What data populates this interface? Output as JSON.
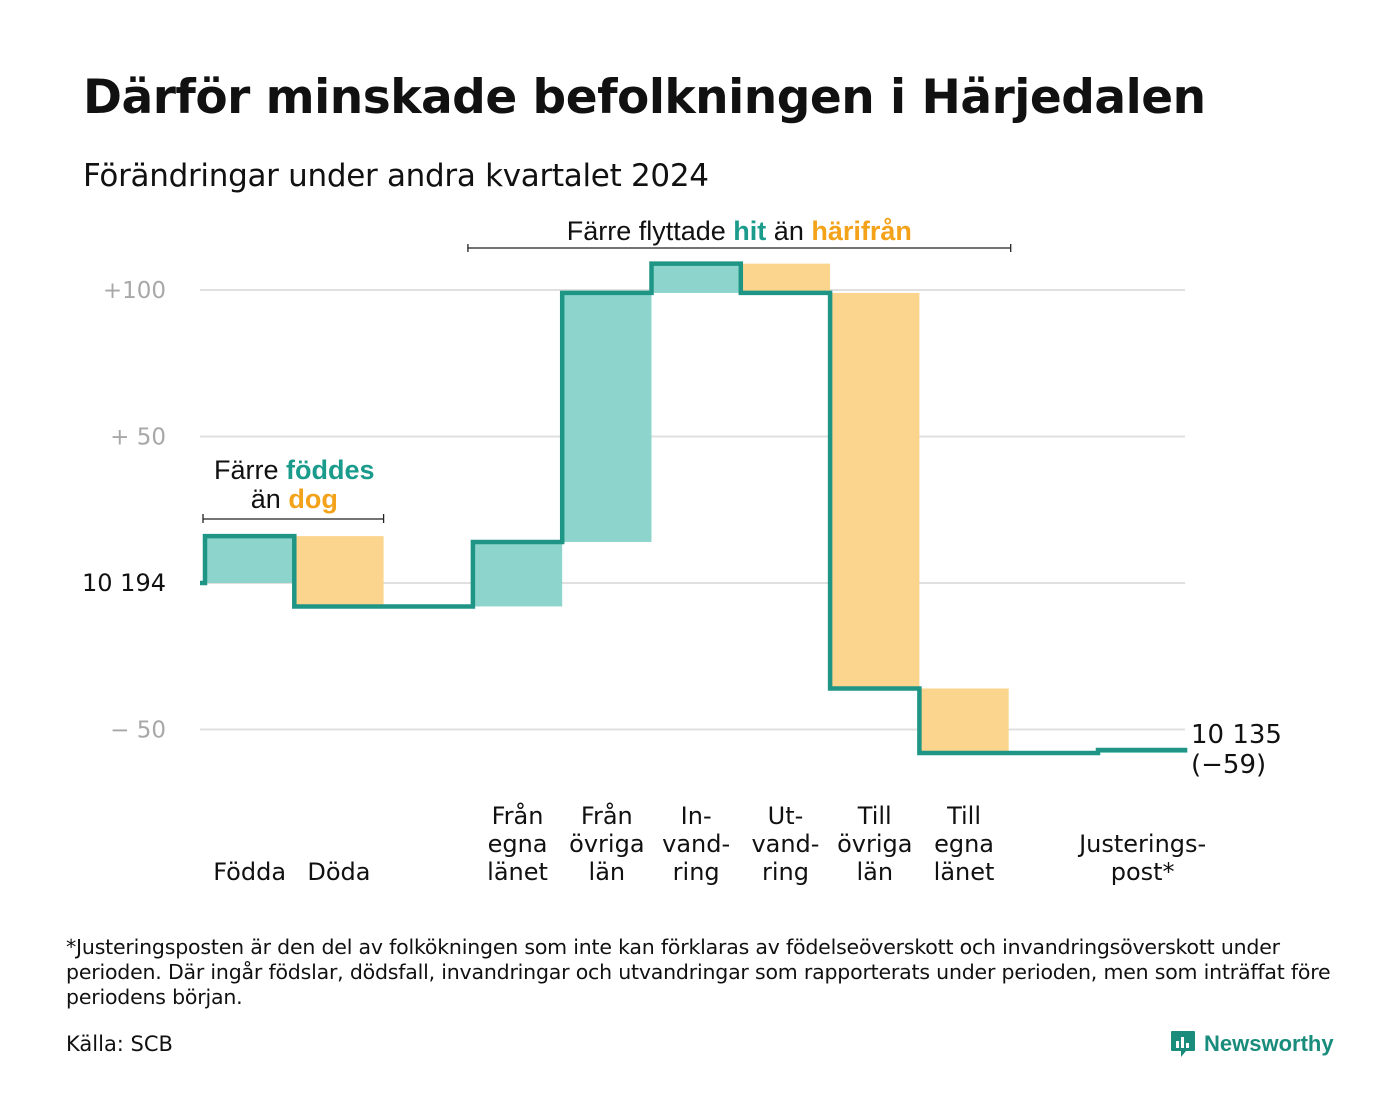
{
  "title": "Därför minskade befolkningen i Härjedalen",
  "subtitle": "Förändringar under andra kvartalet 2024",
  "colors": {
    "increase": "#8dd5cc",
    "decrease": "#fbd58e",
    "line": "#1f9585",
    "hit_text": "#1a9b8c",
    "dog_text": "#f3a21a",
    "grid": "#e0e0e0"
  },
  "chart_data": {
    "type": "waterfall",
    "start_value": 10194,
    "end_value": 10135,
    "y_ticks": [
      {
        "value": 100,
        "label": "+100"
      },
      {
        "value": 50,
        "label": "+  50"
      },
      {
        "value": 0,
        "label": "10  194"
      },
      {
        "value": -50,
        "label": "−  50"
      }
    ],
    "ylim": [
      -70,
      112
    ],
    "steps": [
      {
        "name": "Födda",
        "label_lines": [
          "Födda"
        ],
        "change": 16
      },
      {
        "name": "Döda",
        "label_lines": [
          "Döda"
        ],
        "change": -24
      },
      {
        "name": "gap",
        "label_lines": [],
        "change": 0
      },
      {
        "name": "Från egna länet",
        "label_lines": [
          "Från",
          "egna",
          "länet"
        ],
        "change": 22
      },
      {
        "name": "Från övriga län",
        "label_lines": [
          "Från",
          "övriga",
          "län"
        ],
        "change": 85
      },
      {
        "name": "Invandring",
        "label_lines": [
          "In-",
          "vand-",
          "ring"
        ],
        "change": 10
      },
      {
        "name": "Utvandring",
        "label_lines": [
          "Ut-",
          "vand-",
          "ring"
        ],
        "change": -10
      },
      {
        "name": "Till övriga län",
        "label_lines": [
          "Till",
          "övriga",
          "län"
        ],
        "change": -135
      },
      {
        "name": "Till egna länet",
        "label_lines": [
          "Till",
          "egna",
          "länet"
        ],
        "change": -22
      },
      {
        "name": "gap2",
        "label_lines": [],
        "change": 0
      },
      {
        "name": "Justeringspost*",
        "label_lines": [
          "Justerings-",
          "post*"
        ],
        "change": 1
      }
    ],
    "end_label_lines": [
      "10 135",
      "(−59)"
    ],
    "annotations": {
      "birth": {
        "prefix": "Färre",
        "highlight1": "föddes",
        "middle": "än",
        "highlight2": "dog"
      },
      "migration": {
        "prefix": "Färre flyttade",
        "highlight1": "hit",
        "middle": "än",
        "highlight2": "härifrån"
      }
    }
  },
  "footnote": "*Justeringsposten är den del av folkökningen som inte kan förklaras av födelseöverskott och invandringsöverskott under perioden. Där ingår födslar, dödsfall, invandringar och utvandringar som rapporterats under perioden, men som inträffat före periodens början.",
  "source": "Källa: SCB",
  "logo_text": "Newsworthy"
}
